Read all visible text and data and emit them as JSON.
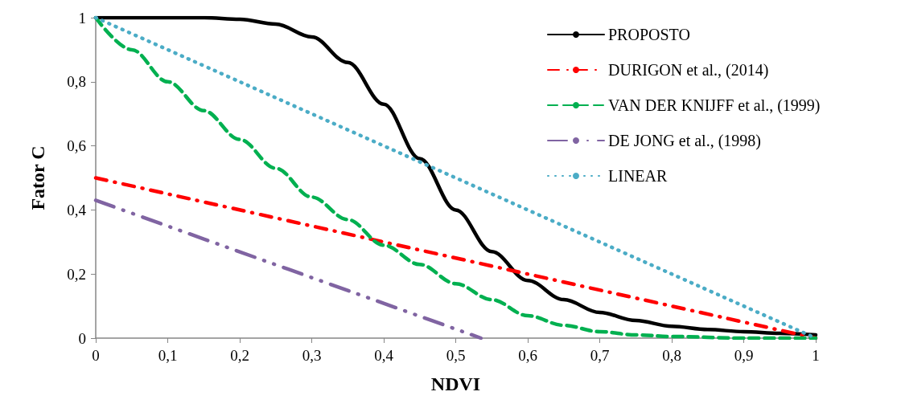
{
  "chart_data": {
    "type": "line",
    "xlabel": "NDVI",
    "ylabel": "Fator C",
    "xlim": [
      0,
      1
    ],
    "ylim": [
      0,
      1
    ],
    "xticks": [
      0,
      {
        "value": 0.1,
        "label": "0,1"
      },
      {
        "value": 0.2,
        "label": "0,2"
      },
      {
        "value": 0.3,
        "label": "0,3"
      },
      {
        "value": 0.4,
        "label": "0,4"
      },
      {
        "value": 0.5,
        "label": "0,5"
      },
      {
        "value": 0.6,
        "label": "0,6"
      },
      {
        "value": 0.7,
        "label": "0,7"
      },
      {
        "value": 0.8,
        "label": "0,8"
      },
      {
        "value": 0.9,
        "label": "0,9"
      },
      1
    ],
    "yticks": [
      0,
      {
        "value": 0.2,
        "label": "0,2"
      },
      {
        "value": 0.4,
        "label": "0,4"
      },
      {
        "value": 0.6,
        "label": "0,6"
      },
      {
        "value": 0.8,
        "label": "0,8"
      },
      1
    ],
    "grid": false,
    "legend": "top right",
    "marker": "none",
    "series": [
      {
        "name": "PROPOSTO",
        "color": "#000000",
        "line_style": "solid",
        "x": [
          0,
          0.05,
          0.1,
          0.15,
          0.2,
          0.25,
          0.3,
          0.35,
          0.4,
          0.45,
          0.5,
          0.55,
          0.6,
          0.65,
          0.7,
          0.75,
          0.8,
          0.85,
          0.9,
          0.95,
          1
        ],
        "values": [
          1,
          1,
          1,
          1,
          0.995,
          0.98,
          0.94,
          0.86,
          0.73,
          0.56,
          0.4,
          0.27,
          0.18,
          0.12,
          0.08,
          0.055,
          0.037,
          0.027,
          0.02,
          0.015,
          0.01
        ]
      },
      {
        "name": "DURIGON et al., (2014)",
        "color": "#ff0000",
        "line_style": "dashdot",
        "x": [
          0,
          1
        ],
        "values": [
          0.5,
          0
        ]
      },
      {
        "name": "VAN DER KNIJFF et al., (1999)",
        "color": "#00b050",
        "line_style": "dashed",
        "x": [
          0,
          0.05,
          0.1,
          0.15,
          0.2,
          0.25,
          0.3,
          0.35,
          0.4,
          0.45,
          0.5,
          0.55,
          0.6,
          0.65,
          0.7,
          0.75,
          0.8,
          0.9,
          1
        ],
        "values": [
          1,
          0.9,
          0.8,
          0.71,
          0.62,
          0.53,
          0.44,
          0.37,
          0.29,
          0.23,
          0.17,
          0.12,
          0.07,
          0.04,
          0.02,
          0.01,
          0.005,
          0,
          0
        ]
      },
      {
        "name": "DE JONG et al., (1998)",
        "color": "#8064a2",
        "line_style": "longdashdotdot",
        "x": [
          0,
          0.535
        ],
        "values": [
          0.43,
          0
        ]
      },
      {
        "name": "LINEAR",
        "color": "#4bacc6",
        "line_style": "dotted",
        "x": [
          0,
          1
        ],
        "values": [
          1,
          0
        ]
      }
    ]
  }
}
